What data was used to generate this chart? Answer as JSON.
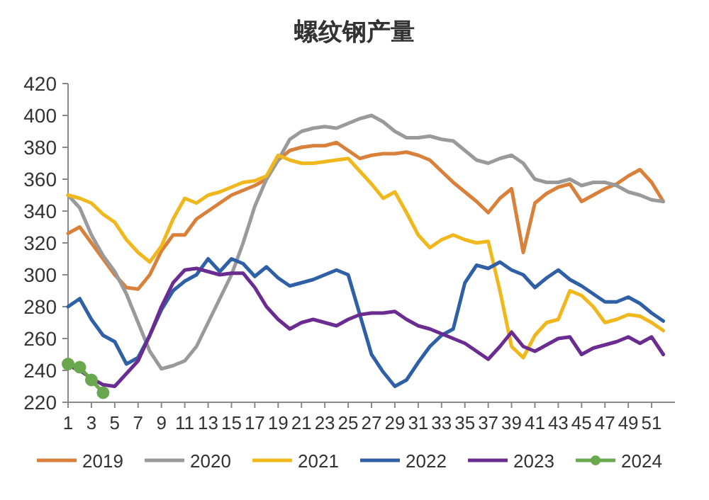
{
  "chart_data": {
    "type": "line",
    "title": "螺纹钢产量",
    "x": [
      1,
      2,
      3,
      4,
      5,
      6,
      7,
      8,
      9,
      10,
      11,
      12,
      13,
      14,
      15,
      16,
      17,
      18,
      19,
      20,
      21,
      22,
      23,
      24,
      25,
      26,
      27,
      28,
      29,
      30,
      31,
      32,
      33,
      34,
      35,
      36,
      37,
      38,
      39,
      40,
      41,
      42,
      43,
      44,
      45,
      46,
      47,
      48,
      49,
      50,
      51,
      52
    ],
    "xlim": [
      1,
      53
    ],
    "xticks": [
      1,
      3,
      5,
      7,
      9,
      11,
      13,
      15,
      17,
      19,
      21,
      23,
      25,
      27,
      29,
      31,
      33,
      35,
      37,
      39,
      41,
      43,
      45,
      47,
      49,
      51
    ],
    "ylim": [
      220,
      420
    ],
    "yticks": [
      220,
      240,
      260,
      280,
      300,
      320,
      340,
      360,
      380,
      400,
      420
    ],
    "legend": "bottom",
    "marker": "none",
    "series": [
      {
        "name": "2019",
        "color": "#d9803b",
        "values": [
          326,
          330,
          320,
          310,
          300,
          292,
          291,
          300,
          315,
          325,
          325,
          335,
          340,
          345,
          350,
          353,
          356,
          360,
          372,
          378,
          380,
          381,
          381,
          383,
          378,
          373,
          375,
          376,
          376,
          377,
          375,
          372,
          365,
          358,
          352,
          346,
          339,
          348,
          354,
          314,
          345,
          351,
          355,
          357,
          346,
          350,
          354,
          357,
          362,
          366,
          358,
          346
        ]
      },
      {
        "name": "2020",
        "color": "#9a9a9a",
        "values": [
          350,
          342,
          325,
          312,
          302,
          288,
          270,
          252,
          241,
          243,
          246,
          255,
          270,
          285,
          300,
          320,
          343,
          360,
          372,
          385,
          390,
          392,
          393,
          392,
          395,
          398,
          400,
          396,
          390,
          386,
          386,
          387,
          385,
          384,
          378,
          372,
          370,
          373,
          375,
          370,
          360,
          358,
          358,
          360,
          356,
          358,
          358,
          356,
          352,
          350,
          347,
          346
        ]
      },
      {
        "name": "2021",
        "color": "#f0b81c",
        "values": [
          350,
          348,
          345,
          338,
          333,
          322,
          314,
          308,
          318,
          335,
          348,
          345,
          350,
          352,
          355,
          358,
          359,
          362,
          375,
          372,
          370,
          370,
          371,
          372,
          373,
          365,
          357,
          348,
          352,
          339,
          325,
          317,
          322,
          325,
          322,
          320,
          321,
          290,
          255,
          248,
          262,
          270,
          272,
          290,
          287,
          280,
          270,
          272,
          275,
          274,
          270,
          265
        ]
      },
      {
        "name": "2022",
        "color": "#2f5fa5",
        "values": [
          280,
          285,
          272,
          262,
          258,
          244,
          248,
          262,
          278,
          290,
          296,
          300,
          310,
          302,
          310,
          307,
          299,
          305,
          298,
          293,
          295,
          297,
          300,
          303,
          300,
          275,
          250,
          239,
          230,
          234,
          245,
          255,
          262,
          266,
          295,
          306,
          304,
          308,
          303,
          300,
          292,
          298,
          303,
          297,
          293,
          288,
          283,
          283,
          286,
          282,
          276,
          271
        ]
      },
      {
        "name": "2023",
        "color": "#6a2c91",
        "values": [
          243,
          240,
          235,
          231,
          230,
          238,
          246,
          262,
          280,
          295,
          303,
          304,
          302,
          300,
          301,
          301,
          292,
          280,
          272,
          266,
          270,
          272,
          270,
          268,
          272,
          275,
          276,
          276,
          277,
          272,
          268,
          266,
          263,
          260,
          257,
          252,
          247,
          255,
          264,
          255,
          252,
          256,
          260,
          261,
          250,
          254,
          256,
          258,
          261,
          257,
          261,
          250
        ]
      },
      {
        "name": "2024",
        "color": "#6aa84f",
        "marker": "circle",
        "x": [
          1,
          2,
          3,
          4
        ],
        "values": [
          244,
          242,
          234,
          226
        ]
      }
    ]
  }
}
